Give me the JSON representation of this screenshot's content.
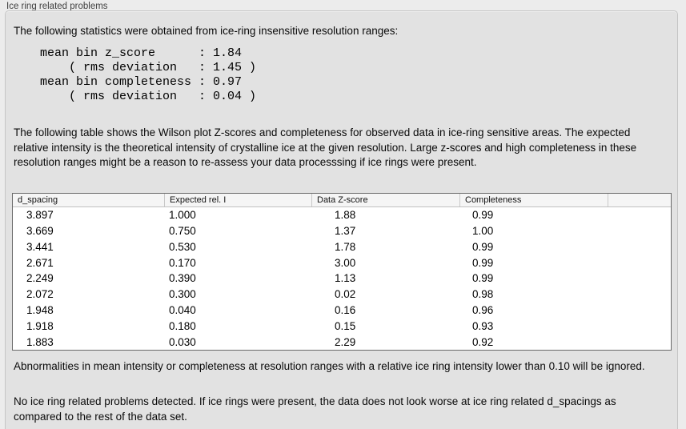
{
  "panel": {
    "title": "Ice ring related problems",
    "intro": "The following statistics were obtained from ice-ring insensitive resolution ranges:",
    "stats_lines": [
      "mean bin z_score      : 1.84",
      "    ( rms deviation   : 1.45 )",
      "mean bin completeness : 0.97",
      "    ( rms deviation   : 0.04 )"
    ],
    "stats_values": {
      "mean_bin_z_score": "1.84",
      "z_score_rms_deviation": "1.45",
      "mean_bin_completeness": "0.97",
      "completeness_rms_deviation": "0.04"
    },
    "table_description": "The following table shows the Wilson plot Z-scores and completeness for observed data in ice-ring sensitive areas. The expected relative intensity is the theoretical intensity of crystalline ice at the given resolution. Large z-scores and high completeness in these resolution ranges might be a reason to re-assess your data processsing if ice rings were present.",
    "ignore_note": "Abnormalities in mean intensity or completeness at resolution ranges with a relative ice ring intensity lower than 0.10 will be ignored.",
    "conclusion": "No ice ring related problems detected. If ice rings were present, the data does not look worse at ice ring related d_spacings as compared to the rest of the data set."
  },
  "table": {
    "columns": [
      "d_spacing",
      "Expected rel. I",
      "Data Z-score",
      "Completeness",
      ""
    ],
    "rows": [
      [
        "3.897",
        "1.000",
        "1.88",
        "0.99"
      ],
      [
        "3.669",
        "0.750",
        "1.37",
        "1.00"
      ],
      [
        "3.441",
        "0.530",
        "1.78",
        "0.99"
      ],
      [
        "2.671",
        "0.170",
        "3.00",
        "0.99"
      ],
      [
        "2.249",
        "0.390",
        "1.13",
        "0.99"
      ],
      [
        "2.072",
        "0.300",
        "0.02",
        "0.98"
      ],
      [
        "1.948",
        "0.040",
        "0.16",
        "0.96"
      ],
      [
        "1.918",
        "0.180",
        "0.15",
        "0.93"
      ],
      [
        "1.883",
        "0.030",
        "2.29",
        "0.92"
      ]
    ]
  },
  "colors": {
    "page_bg": "#ececec",
    "panel_bg": "#e2e2e2",
    "panel_border": "#c5c5c5",
    "table_border": "#6a6a6a",
    "table_header_bg": "#f5f5f5",
    "text": "#0a0a0a"
  }
}
